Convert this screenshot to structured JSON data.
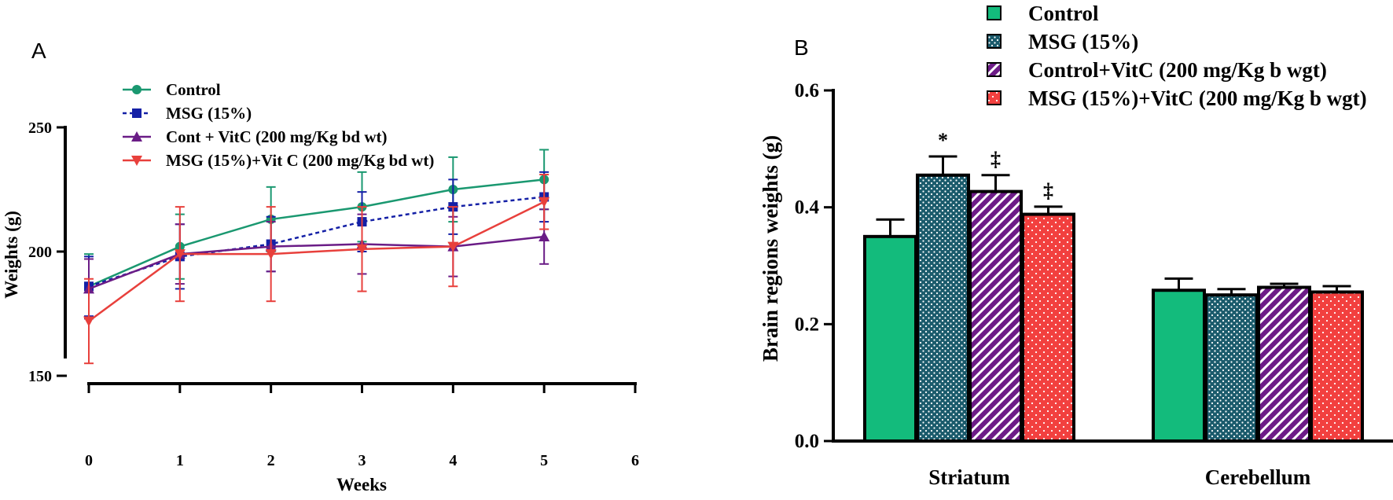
{
  "chart_data": [
    {
      "panel_label": "A",
      "type": "line",
      "title": "",
      "xlabel": "Weeks",
      "ylabel": "Weights (g)",
      "xlim": [
        0,
        6
      ],
      "ylim": [
        150,
        250
      ],
      "x_ticks": [
        "0",
        "1",
        "2",
        "3",
        "4",
        "5",
        "6"
      ],
      "y_ticks": [
        "150",
        "200",
        "250"
      ],
      "legend_position": "top-left",
      "x": [
        0,
        1,
        2,
        3,
        4,
        5
      ],
      "series": [
        {
          "name": "Control",
          "color": "#1a9870",
          "marker": "circle",
          "dash": "solid",
          "values": [
            186,
            202,
            213,
            218,
            225,
            229
          ],
          "errors": [
            13,
            13,
            13,
            14,
            13,
            12
          ]
        },
        {
          "name": "MSG (15%)",
          "color": "#1420a6",
          "marker": "square",
          "dash": "dotted",
          "values": [
            186,
            198,
            203,
            212,
            218,
            222
          ],
          "errors": [
            12,
            13,
            11,
            12,
            11,
            10
          ]
        },
        {
          "name": "Cont + VitC (200 mg/Kg bd wt)",
          "color": "#6a1c86",
          "marker": "triangle-up",
          "dash": "solid",
          "values": [
            185,
            199,
            202,
            203,
            202,
            206
          ],
          "errors": [
            12,
            12,
            10,
            12,
            12,
            11
          ]
        },
        {
          "name": "MSG (15%)+Vit C (200 mg/Kg bd wt)",
          "color": "#e8403c",
          "marker": "triangle-down",
          "dash": "solid",
          "values": [
            172,
            199,
            199,
            201,
            202,
            220
          ],
          "errors": [
            17,
            19,
            19,
            17,
            16,
            11
          ]
        }
      ]
    },
    {
      "panel_label": "B",
      "type": "bar",
      "title": "",
      "xlabel": "",
      "ylabel": "Brain regions weights (g)",
      "ylim": [
        0,
        0.6
      ],
      "y_ticks": [
        "0.0",
        "0.2",
        "0.4",
        "0.6"
      ],
      "legend_position": "top",
      "categories": [
        "Striatum",
        "Cerebellum"
      ],
      "series": [
        {
          "name": "Control",
          "color": "#13bb7c",
          "pattern": "solid",
          "values": [
            0.35,
            0.258
          ],
          "errors": [
            0.029,
            0.02
          ],
          "annotations": [
            "",
            ""
          ]
        },
        {
          "name": "MSG (15%)",
          "color": "#1b5b6c",
          "pattern": "dots",
          "values": [
            0.455,
            0.25
          ],
          "errors": [
            0.032,
            0.01
          ],
          "annotations": [
            "*",
            ""
          ]
        },
        {
          "name": "Control+VitC (200 mg/Kg b wgt)",
          "color": "#6d1b87",
          "pattern": "stripes",
          "values": [
            0.427,
            0.263
          ],
          "errors": [
            0.028,
            0.006
          ],
          "annotations": [
            "‡",
            ""
          ]
        },
        {
          "name": "MSG (15%)+VitC (200 mg/Kg b wgt)",
          "color": "#f2403f",
          "pattern": "dots-white",
          "values": [
            0.388,
            0.255
          ],
          "errors": [
            0.013,
            0.01
          ],
          "annotations": [
            "‡",
            ""
          ]
        }
      ]
    }
  ]
}
